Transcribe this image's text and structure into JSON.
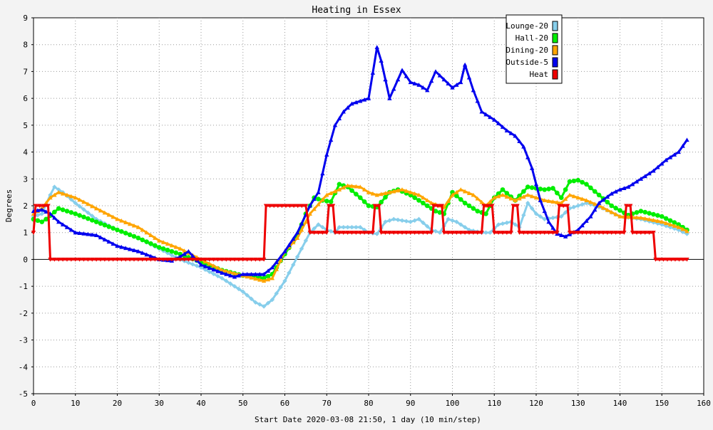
{
  "chart_data": {
    "type": "line",
    "title": "Heating in Essex",
    "xlabel": "Start Date 2020-03-08 21:50, 1 day (10 min/step)",
    "ylabel": "Degrees",
    "xlim": [
      0,
      160
    ],
    "ylim": [
      -5,
      9
    ],
    "xticks": [
      0,
      10,
      20,
      30,
      40,
      50,
      60,
      70,
      80,
      90,
      100,
      110,
      120,
      130,
      140,
      150,
      160
    ],
    "yticks": [
      -5,
      -4,
      -3,
      -2,
      -1,
      0,
      1,
      2,
      3,
      4,
      5,
      6,
      7,
      8,
      9
    ],
    "grid": true,
    "legend_position": "top-right",
    "series": [
      {
        "name": "Lounge-20",
        "color": "#87ceeb",
        "marker": "diamond",
        "points": [
          [
            0,
            1.6
          ],
          [
            2,
            1.7
          ],
          [
            4,
            2.4
          ],
          [
            5,
            2.7
          ],
          [
            7,
            2.5
          ],
          [
            10,
            2.1
          ],
          [
            15,
            1.5
          ],
          [
            20,
            1.1
          ],
          [
            25,
            0.8
          ],
          [
            30,
            0.4
          ],
          [
            35,
            0.0
          ],
          [
            40,
            -0.3
          ],
          [
            45,
            -0.7
          ],
          [
            50,
            -1.2
          ],
          [
            53,
            -1.6
          ],
          [
            55,
            -1.75
          ],
          [
            57,
            -1.5
          ],
          [
            60,
            -0.8
          ],
          [
            62,
            -0.2
          ],
          [
            64,
            0.4
          ],
          [
            66,
            1.0
          ],
          [
            68,
            1.3
          ],
          [
            70,
            1.1
          ],
          [
            72,
            1.0
          ],
          [
            73,
            1.2
          ],
          [
            78,
            1.2
          ],
          [
            80,
            1.0
          ],
          [
            82,
            0.95
          ],
          [
            84,
            1.4
          ],
          [
            86,
            1.5
          ],
          [
            90,
            1.4
          ],
          [
            92,
            1.5
          ],
          [
            95,
            1.1
          ],
          [
            97,
            1.0
          ],
          [
            99,
            1.5
          ],
          [
            101,
            1.4
          ],
          [
            104,
            1.1
          ],
          [
            107,
            1.0
          ],
          [
            109,
            1.0
          ],
          [
            111,
            1.3
          ],
          [
            114,
            1.4
          ],
          [
            116,
            1.2
          ],
          [
            118,
            2.1
          ],
          [
            120,
            1.7
          ],
          [
            122,
            1.5
          ],
          [
            126,
            1.6
          ],
          [
            128,
            1.9
          ],
          [
            130,
            2.0
          ],
          [
            132,
            2.1
          ],
          [
            134,
            2.0
          ],
          [
            136,
            1.9
          ],
          [
            140,
            1.6
          ],
          [
            145,
            1.5
          ],
          [
            150,
            1.3
          ],
          [
            154,
            1.1
          ],
          [
            156,
            0.95
          ]
        ]
      },
      {
        "name": "Hall-20",
        "color": "#00ee00",
        "marker": "circle",
        "points": [
          [
            0,
            1.5
          ],
          [
            2,
            1.4
          ],
          [
            3,
            1.5
          ],
          [
            6,
            1.9
          ],
          [
            10,
            1.7
          ],
          [
            15,
            1.4
          ],
          [
            20,
            1.1
          ],
          [
            25,
            0.8
          ],
          [
            30,
            0.45
          ],
          [
            35,
            0.2
          ],
          [
            40,
            -0.1
          ],
          [
            45,
            -0.4
          ],
          [
            50,
            -0.6
          ],
          [
            55,
            -0.7
          ],
          [
            57,
            -0.55
          ],
          [
            60,
            0.2
          ],
          [
            63,
            0.9
          ],
          [
            65,
            1.7
          ],
          [
            67,
            2.3
          ],
          [
            69,
            2.2
          ],
          [
            71,
            2.15
          ],
          [
            73,
            2.8
          ],
          [
            75,
            2.7
          ],
          [
            78,
            2.3
          ],
          [
            80,
            2.0
          ],
          [
            82,
            1.95
          ],
          [
            85,
            2.5
          ],
          [
            87,
            2.6
          ],
          [
            90,
            2.4
          ],
          [
            93,
            2.1
          ],
          [
            96,
            1.8
          ],
          [
            98,
            1.7
          ],
          [
            100,
            2.5
          ],
          [
            103,
            2.1
          ],
          [
            106,
            1.8
          ],
          [
            108,
            1.7
          ],
          [
            110,
            2.3
          ],
          [
            112,
            2.6
          ],
          [
            115,
            2.2
          ],
          [
            118,
            2.7
          ],
          [
            122,
            2.6
          ],
          [
            124,
            2.65
          ],
          [
            126,
            2.3
          ],
          [
            128,
            2.9
          ],
          [
            130,
            2.95
          ],
          [
            132,
            2.8
          ],
          [
            135,
            2.4
          ],
          [
            138,
            2.0
          ],
          [
            142,
            1.65
          ],
          [
            145,
            1.8
          ],
          [
            150,
            1.6
          ],
          [
            154,
            1.3
          ],
          [
            156,
            1.1
          ]
        ]
      },
      {
        "name": "Dining-20",
        "color": "#ffa500",
        "marker": "triangle",
        "points": [
          [
            0,
            1.7
          ],
          [
            2,
            1.9
          ],
          [
            4,
            2.3
          ],
          [
            6,
            2.5
          ],
          [
            10,
            2.3
          ],
          [
            15,
            1.9
          ],
          [
            20,
            1.5
          ],
          [
            25,
            1.2
          ],
          [
            30,
            0.7
          ],
          [
            35,
            0.4
          ],
          [
            40,
            0.0
          ],
          [
            45,
            -0.4
          ],
          [
            50,
            -0.6
          ],
          [
            55,
            -0.8
          ],
          [
            57,
            -0.7
          ],
          [
            60,
            0.3
          ],
          [
            63,
            0.8
          ],
          [
            66,
            1.7
          ],
          [
            70,
            2.4
          ],
          [
            73,
            2.6
          ],
          [
            75,
            2.75
          ],
          [
            78,
            2.7
          ],
          [
            80,
            2.5
          ],
          [
            82,
            2.4
          ],
          [
            85,
            2.5
          ],
          [
            88,
            2.6
          ],
          [
            92,
            2.4
          ],
          [
            95,
            2.1
          ],
          [
            98,
            1.95
          ],
          [
            100,
            2.4
          ],
          [
            102,
            2.6
          ],
          [
            105,
            2.4
          ],
          [
            108,
            2.0
          ],
          [
            110,
            2.3
          ],
          [
            112,
            2.4
          ],
          [
            115,
            2.2
          ],
          [
            118,
            2.4
          ],
          [
            122,
            2.2
          ],
          [
            126,
            2.1
          ],
          [
            128,
            2.4
          ],
          [
            132,
            2.2
          ],
          [
            135,
            2.0
          ],
          [
            140,
            1.6
          ],
          [
            145,
            1.55
          ],
          [
            150,
            1.4
          ],
          [
            154,
            1.2
          ],
          [
            156,
            1.05
          ]
        ]
      },
      {
        "name": "Outside-5",
        "color": "#0000ee",
        "marker": "triangle",
        "points": [
          [
            0,
            1.8
          ],
          [
            2,
            1.85
          ],
          [
            4,
            1.7
          ],
          [
            6,
            1.4
          ],
          [
            8,
            1.2
          ],
          [
            10,
            1.0
          ],
          [
            15,
            0.9
          ],
          [
            20,
            0.5
          ],
          [
            25,
            0.3
          ],
          [
            30,
            0.0
          ],
          [
            33,
            -0.05
          ],
          [
            35,
            0.1
          ],
          [
            37,
            0.3
          ],
          [
            40,
            -0.2
          ],
          [
            45,
            -0.5
          ],
          [
            48,
            -0.65
          ],
          [
            50,
            -0.55
          ],
          [
            53,
            -0.55
          ],
          [
            55,
            -0.55
          ],
          [
            57,
            -0.3
          ],
          [
            60,
            0.3
          ],
          [
            63,
            1.0
          ],
          [
            66,
            2.0
          ],
          [
            68,
            2.5
          ],
          [
            70,
            3.9
          ],
          [
            72,
            5.0
          ],
          [
            74,
            5.5
          ],
          [
            76,
            5.8
          ],
          [
            78,
            5.9
          ],
          [
            80,
            6.0
          ],
          [
            82,
            7.9
          ],
          [
            83,
            7.4
          ],
          [
            85,
            6.0
          ],
          [
            87,
            6.7
          ],
          [
            88,
            7.05
          ],
          [
            90,
            6.6
          ],
          [
            92,
            6.5
          ],
          [
            94,
            6.3
          ],
          [
            96,
            7.0
          ],
          [
            98,
            6.7
          ],
          [
            100,
            6.4
          ],
          [
            102,
            6.6
          ],
          [
            103,
            7.25
          ],
          [
            105,
            6.3
          ],
          [
            107,
            5.5
          ],
          [
            110,
            5.2
          ],
          [
            113,
            4.8
          ],
          [
            115,
            4.6
          ],
          [
            117,
            4.2
          ],
          [
            119,
            3.4
          ],
          [
            121,
            2.2
          ],
          [
            123,
            1.4
          ],
          [
            125,
            0.95
          ],
          [
            127,
            0.85
          ],
          [
            130,
            1.1
          ],
          [
            133,
            1.6
          ],
          [
            135,
            2.1
          ],
          [
            138,
            2.45
          ],
          [
            140,
            2.6
          ],
          [
            142,
            2.7
          ],
          [
            145,
            3.0
          ],
          [
            148,
            3.3
          ],
          [
            151,
            3.7
          ],
          [
            154,
            4.0
          ],
          [
            156,
            4.45
          ]
        ]
      },
      {
        "name": "Heat",
        "color": "#ee0000",
        "marker": "down-triangle",
        "points": [
          [
            0,
            1
          ],
          [
            0.5,
            2
          ],
          [
            3.5,
            2
          ],
          [
            4,
            0
          ],
          [
            55,
            0
          ],
          [
            55.5,
            2
          ],
          [
            65,
            2
          ],
          [
            66,
            1
          ],
          [
            70,
            1
          ],
          [
            70.5,
            2
          ],
          [
            71.5,
            2
          ],
          [
            72,
            1
          ],
          [
            81,
            1
          ],
          [
            81.5,
            2
          ],
          [
            82.5,
            2
          ],
          [
            83,
            1
          ],
          [
            95,
            1
          ],
          [
            95.5,
            2
          ],
          [
            97.5,
            2
          ],
          [
            98,
            1
          ],
          [
            107,
            1
          ],
          [
            107.5,
            2
          ],
          [
            109.5,
            2
          ],
          [
            110,
            1
          ],
          [
            114,
            1
          ],
          [
            114.5,
            2
          ],
          [
            115.5,
            2
          ],
          [
            116,
            1
          ],
          [
            125,
            1
          ],
          [
            125.5,
            2
          ],
          [
            127.5,
            2
          ],
          [
            128,
            1
          ],
          [
            141,
            1
          ],
          [
            141.5,
            2
          ],
          [
            142.5,
            2
          ],
          [
            143,
            1
          ],
          [
            148,
            1
          ],
          [
            148.5,
            0
          ],
          [
            156,
            0
          ]
        ]
      }
    ]
  }
}
